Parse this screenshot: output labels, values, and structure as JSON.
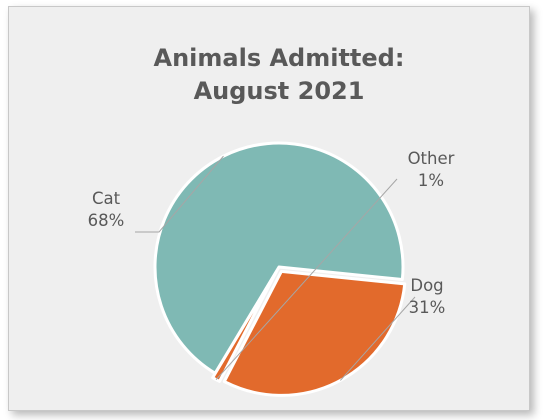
{
  "chart_data": {
    "type": "pie",
    "title_lines": [
      "Animals Admitted:",
      "August 2021"
    ],
    "categories": [
      "Cat",
      "Dog",
      "Other"
    ],
    "values": [
      68,
      31,
      1
    ],
    "value_labels": [
      "68%",
      "31%",
      "1%"
    ],
    "colors": [
      "#7fb9b4",
      "#e26a2c",
      "#e26a2c"
    ],
    "legend": "none",
    "data_labels": "outside with leader lines"
  }
}
